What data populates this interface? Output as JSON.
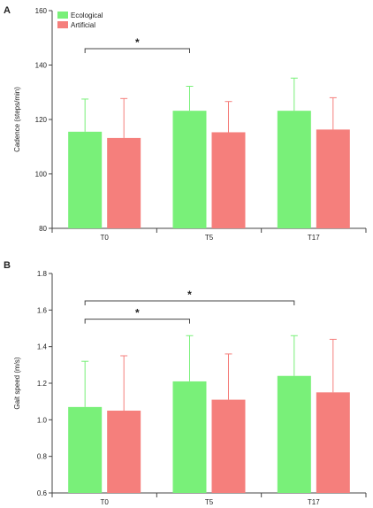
{
  "colors": {
    "Ecological": "#79f079",
    "Artificial": "#f57f7c"
  },
  "chart_data": [
    {
      "type": "bar",
      "panel": "A",
      "categories": [
        "T0",
        "T5",
        "T17"
      ],
      "ylabel": "Cadence (steps/min)",
      "ylim": [
        80,
        160
      ],
      "yticks": [
        80,
        100,
        120,
        140,
        160
      ],
      "legend": "top-left",
      "series": [
        {
          "name": "Ecological",
          "values": [
            115.5,
            123.2,
            123.2
          ],
          "errors": [
            12.0,
            9.0,
            12.0
          ]
        },
        {
          "name": "Artificial",
          "values": [
            113.2,
            115.3,
            116.3
          ],
          "errors": [
            14.5,
            11.3,
            11.7
          ]
        }
      ],
      "annotations": [
        {
          "from": "T0",
          "to": "T5",
          "text": "*",
          "y": 146
        }
      ]
    },
    {
      "type": "bar",
      "panel": "B",
      "categories": [
        "T0",
        "T5",
        "T17"
      ],
      "ylabel": "Gait speed (m/s)",
      "ylim": [
        0.6,
        1.8
      ],
      "yticks": [
        "0.6",
        "0.8",
        "1.0",
        "1.2",
        "1.4",
        "1.6",
        "1.8"
      ],
      "series": [
        {
          "name": "Ecological",
          "values": [
            1.07,
            1.21,
            1.24
          ],
          "errors": [
            0.25,
            0.25,
            0.22
          ]
        },
        {
          "name": "Artificial",
          "values": [
            1.05,
            1.11,
            1.15
          ],
          "errors": [
            0.3,
            0.25,
            0.29
          ]
        }
      ],
      "annotations": [
        {
          "from": "T0",
          "to": "T5",
          "text": "*",
          "y": 1.55
        },
        {
          "from": "T0",
          "to": "T17",
          "text": "*",
          "y": 1.65
        }
      ]
    }
  ]
}
